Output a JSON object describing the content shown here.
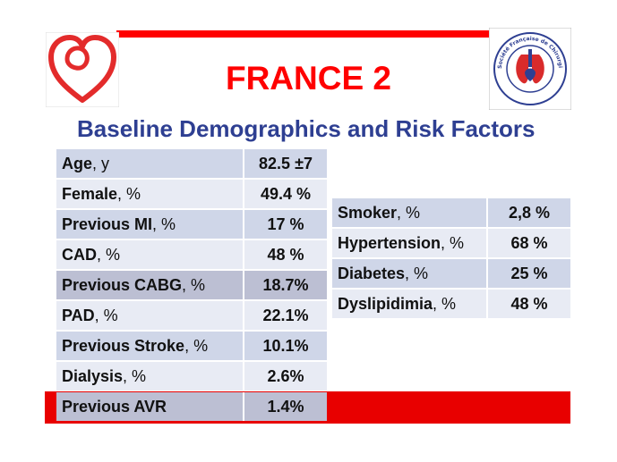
{
  "slide": {
    "title": "FRANCE 2",
    "subtitle": "Baseline Demographics and Risk Factors"
  },
  "colors": {
    "accent_red": "#ff0000",
    "subtitle_blue": "#2e3f92",
    "row_dark": "#cfd6e8",
    "row_light": "#e8ebf4",
    "row_highlight": "#bcbfd3"
  },
  "logos": {
    "left": "heart-icon",
    "right": "society-seal-icon",
    "right_seal_text": "Société Française de Chirurgie Thoracique et Cardio-vasculaire · French Society of Thoracic and Cardiovascular Surgery"
  },
  "left_table": [
    {
      "label": "Age",
      "unit": ", y",
      "value": "82.5 ±7",
      "style": "odd"
    },
    {
      "label": "Female",
      "unit": ", %",
      "value": "49.4 %",
      "style": "even"
    },
    {
      "label": "Previous MI",
      "unit": ", %",
      "value": "17 %",
      "style": "odd"
    },
    {
      "label": "CAD",
      "unit": ", %",
      "value": "48 %",
      "style": "even"
    },
    {
      "label": "Previous CABG",
      "unit": ", %",
      "value": "18.7%",
      "style": "hl"
    },
    {
      "label": "PAD",
      "unit": ", %",
      "value": "22.1%",
      "style": "even"
    },
    {
      "label": "Previous Stroke",
      "unit": ", %",
      "value": "10.1%",
      "style": "odd"
    },
    {
      "label": "Dialysis",
      "unit": ", %",
      "value": "2.6%",
      "style": "even"
    },
    {
      "label": "Previous AVR",
      "unit": "",
      "value": "1.4%",
      "style": "hl"
    }
  ],
  "right_table": [
    {
      "label": "Smoker",
      "unit": ", %",
      "value": "2,8 %",
      "style": "odd"
    },
    {
      "label": "Hypertension",
      "unit": ", %",
      "value": "68 %",
      "style": "even"
    },
    {
      "label": "Diabetes",
      "unit": ", %",
      "value": "25 %",
      "style": "odd"
    },
    {
      "label": "Dyslipidimia",
      "unit": ", %",
      "value": "48 %",
      "style": "even"
    }
  ]
}
